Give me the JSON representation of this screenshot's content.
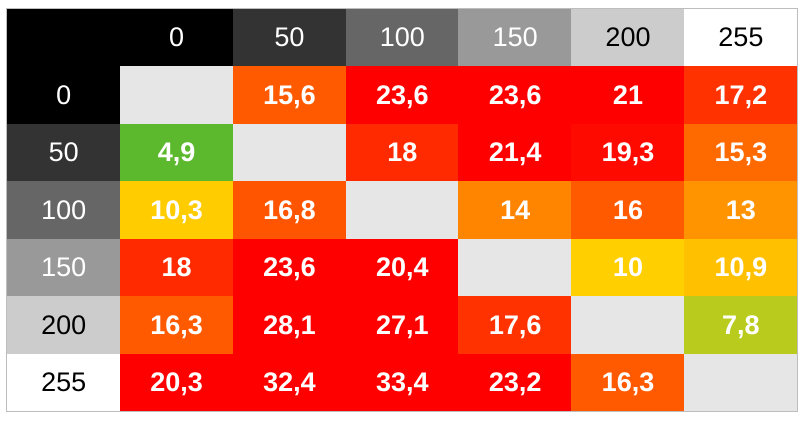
{
  "chart_data": {
    "type": "heatmap",
    "title": "",
    "xlabel": "",
    "ylabel": "",
    "x_labels": [
      "0",
      "50",
      "100",
      "150",
      "200",
      "255"
    ],
    "y_labels": [
      "0",
      "50",
      "100",
      "150",
      "200",
      "255"
    ],
    "header_colors": [
      "#000000",
      "#333333",
      "#666666",
      "#999999",
      "#cccccc",
      "#ffffff"
    ],
    "header_text_colors": [
      "#ffffff",
      "#ffffff",
      "#ffffff",
      "#ffffff",
      "#000000",
      "#000000"
    ],
    "corner_color": "#000000",
    "diagonal_color": "#e6e6e6",
    "values": [
      [
        null,
        "15,6",
        "23,6",
        "23,6",
        "21",
        "17,2"
      ],
      [
        "4,9",
        null,
        "18",
        "21,4",
        "19,3",
        "15,3"
      ],
      [
        "10,3",
        "16,8",
        null,
        "14",
        "16",
        "13"
      ],
      [
        "18",
        "23,6",
        "20,4",
        null,
        "10",
        "10,9"
      ],
      [
        "16,3",
        "28,1",
        "27,1",
        "17,6",
        null,
        "7,8"
      ],
      [
        "20,3",
        "32,4",
        "33,4",
        "23,2",
        "16,3",
        null
      ]
    ],
    "cell_colors": [
      [
        "#e6e6e6",
        "#ff5a00",
        "#ff0000",
        "#ff0000",
        "#ff0000",
        "#ff3200"
      ],
      [
        "#5cb82c",
        "#e6e6e6",
        "#ff2a00",
        "#ff0000",
        "#ff0a00",
        "#ff6a00"
      ],
      [
        "#ffcc00",
        "#ff5500",
        "#e6e6e6",
        "#ff8400",
        "#ff5a00",
        "#ff9400"
      ],
      [
        "#ff2a00",
        "#ff0000",
        "#ff0000",
        "#e6e6e6",
        "#ffcf00",
        "#ffc000"
      ],
      [
        "#ff5a00",
        "#ff0000",
        "#ff0000",
        "#ff3200",
        "#e6e6e6",
        "#b9cc1e"
      ],
      [
        "#ff0000",
        "#ff0000",
        "#ff0000",
        "#ff0000",
        "#ff5a00",
        "#e6e6e6"
      ]
    ],
    "grid": false,
    "legend": "none"
  }
}
